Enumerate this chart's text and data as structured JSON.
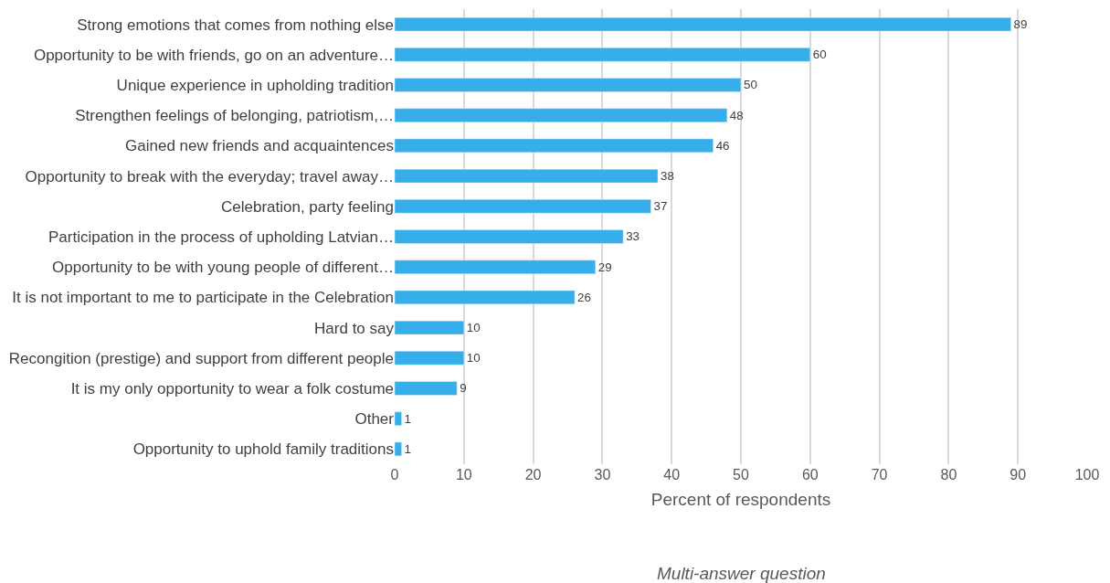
{
  "chart_data": {
    "type": "bar",
    "orientation": "horizontal",
    "categories": [
      "Strong emotions that comes from nothing else",
      "Opportunity to be with friends, go on an adventure…",
      "Unique experience in upholding tradition",
      "Strengthen feelings of belonging, patriotism,…",
      "Gained new friends and acquaintences",
      "Opportunity to break with the everyday; travel away…",
      "Celebration, party feeling",
      "Participation in the process of upholding Latvian…",
      "Opportunity to be with young people of different…",
      "It is not important to me to participate in the Celebration",
      "Hard to say",
      "Recongition (prestige) and support from different people",
      "It is my only opportunity to wear a folk costume",
      "Other",
      "Opportunity to uphold family traditions"
    ],
    "values": [
      89,
      60,
      50,
      48,
      46,
      38,
      37,
      33,
      29,
      26,
      10,
      10,
      9,
      1,
      1
    ],
    "color": "#35aeea",
    "xlabel": "Percent of respondents",
    "annotations": [
      "Multi-answer question"
    ],
    "xlim": [
      0,
      100
    ],
    "xticks": [
      0,
      10,
      20,
      30,
      40,
      50,
      60,
      70,
      80,
      90,
      100
    ],
    "grid": "x",
    "legend": false,
    "data_labels": true
  }
}
